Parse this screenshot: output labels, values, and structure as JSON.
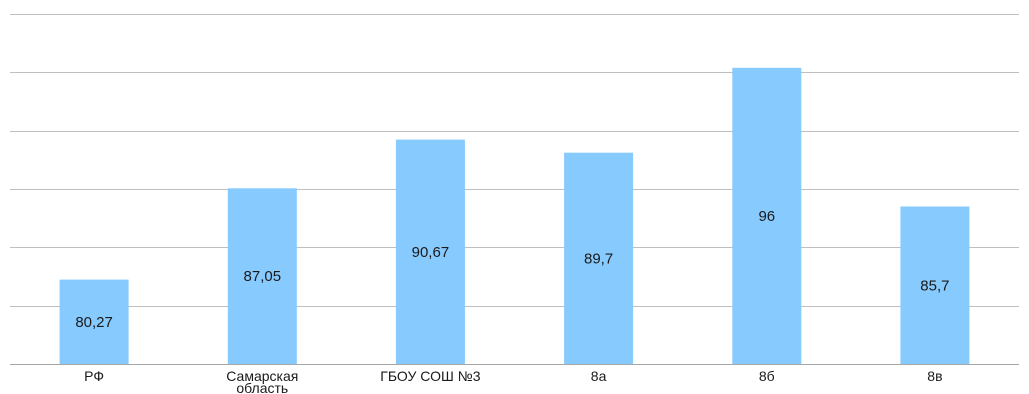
{
  "chart_data": {
    "type": "bar",
    "title": "",
    "xlabel": "",
    "ylabel": "",
    "categories": [
      "РФ",
      "Самарская область",
      "ГБОУ СОШ №3",
      "8а",
      "8б",
      "8в"
    ],
    "values": [
      80.27,
      87.05,
      90.67,
      89.7,
      96,
      85.7
    ],
    "data_labels": [
      "80,27",
      "87,05",
      "90,67",
      "89,7",
      "96",
      "85,7"
    ],
    "ylim": [
      74,
      100
    ],
    "grid": true,
    "legend": "none",
    "bar_color": "#87cafe"
  }
}
